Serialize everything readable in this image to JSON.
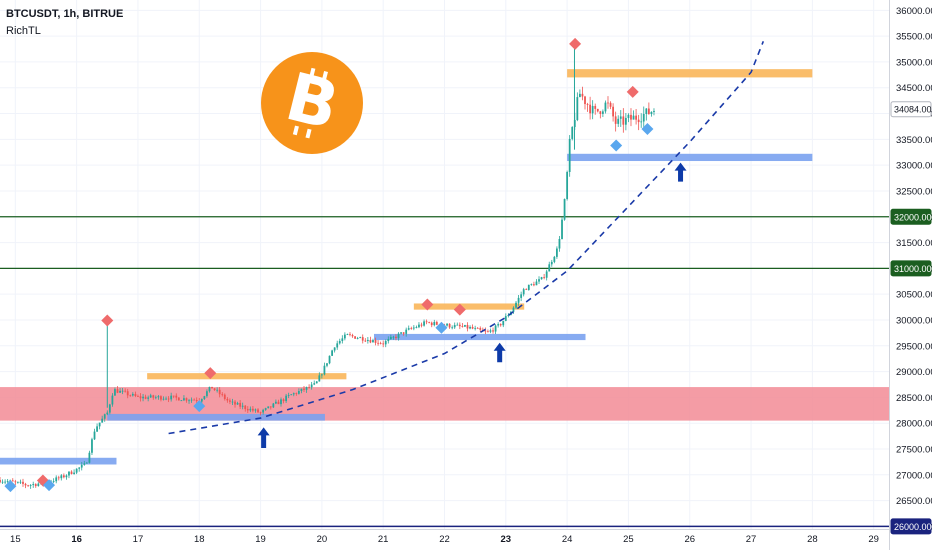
{
  "header": {
    "title": "BTCUSDT, 1h, BITRUE",
    "subtitle": "RichTL"
  },
  "colors": {
    "up": "#26a69a",
    "down": "#ef5350",
    "demand_zone": "#7aa2f0",
    "supply_zone": "#f9b65a",
    "major_zone": "#f28b95",
    "level_line": "#1b5e20",
    "bottom_line": "#1a237e",
    "curve": "#1a3aa8",
    "arrow": "#0d3aa8",
    "diamond_red": "#ef6b6b",
    "diamond_blue": "#5aa7ee",
    "btc_orange": "#f7931a"
  },
  "chart_data": {
    "type": "candlestick",
    "symbol": "BTCUSDT",
    "timeframe": "1h",
    "exchange": "BITRUE",
    "ylim": [
      25950,
      36200
    ],
    "xlim": [
      14.75,
      29.25
    ],
    "y_ticks": [
      "26000.00",
      "26500.00",
      "27000.00",
      "27500.00",
      "28000.00",
      "28500.00",
      "29000.00",
      "29500.00",
      "30000.00",
      "30500.00",
      "31000.00",
      "31500.00",
      "32000.00",
      "32500.00",
      "33000.00",
      "33500.00",
      "34000.00",
      "34500.00",
      "35000.00",
      "35500.00",
      "36000.00"
    ],
    "x_ticks": [
      {
        "label": "15",
        "x": 15,
        "bold": false
      },
      {
        "label": "16",
        "x": 16,
        "bold": true
      },
      {
        "label": "17",
        "x": 17,
        "bold": false
      },
      {
        "label": "18",
        "x": 18,
        "bold": false
      },
      {
        "label": "19",
        "x": 19,
        "bold": false
      },
      {
        "label": "20",
        "x": 20,
        "bold": false
      },
      {
        "label": "21",
        "x": 21,
        "bold": false
      },
      {
        "label": "22",
        "x": 22,
        "bold": false
      },
      {
        "label": "23",
        "x": 23,
        "bold": true
      },
      {
        "label": "24",
        "x": 24,
        "bold": false
      },
      {
        "label": "25",
        "x": 25,
        "bold": false
      },
      {
        "label": "26",
        "x": 26,
        "bold": false
      },
      {
        "label": "27",
        "x": 27,
        "bold": false
      },
      {
        "label": "28",
        "x": 28,
        "bold": false
      },
      {
        "label": "29",
        "x": 29,
        "bold": false
      }
    ],
    "price_labels": [
      {
        "value": 34084,
        "text": "34084.00",
        "style": "current"
      },
      {
        "value": 32000,
        "text": "32000.00",
        "style": "level"
      },
      {
        "value": 31000,
        "text": "31000.00",
        "style": "level"
      },
      {
        "value": 26000,
        "text": "26000.00",
        "style": "bottom"
      }
    ],
    "path_points": [
      [
        14.75,
        26900
      ],
      [
        15.2,
        26800
      ],
      [
        15.5,
        26850
      ],
      [
        15.75,
        26950
      ],
      [
        16.15,
        27200
      ],
      [
        16.3,
        27900
      ],
      [
        16.5,
        28200
      ],
      [
        16.6,
        28650
      ],
      [
        17.0,
        28500
      ],
      [
        17.5,
        28500
      ],
      [
        18.0,
        28450
      ],
      [
        18.2,
        28700
      ],
      [
        18.5,
        28400
      ],
      [
        19.0,
        28200
      ],
      [
        19.5,
        28550
      ],
      [
        19.9,
        28750
      ],
      [
        20.05,
        29100
      ],
      [
        20.2,
        29500
      ],
      [
        20.4,
        29700
      ],
      [
        20.65,
        29650
      ],
      [
        21.0,
        29550
      ],
      [
        21.4,
        29800
      ],
      [
        21.7,
        29950
      ],
      [
        22.0,
        29900
      ],
      [
        22.4,
        29850
      ],
      [
        22.7,
        29750
      ],
      [
        22.9,
        29900
      ],
      [
        23.1,
        30200
      ],
      [
        23.3,
        30600
      ],
      [
        23.6,
        30800
      ],
      [
        23.85,
        31400
      ],
      [
        23.95,
        32200
      ],
      [
        24.05,
        33500
      ],
      [
        24.2,
        34400
      ],
      [
        24.45,
        34000
      ],
      [
        24.65,
        34200
      ],
      [
        24.8,
        33800
      ],
      [
        25.05,
        33900
      ],
      [
        25.3,
        34000
      ],
      [
        25.42,
        34084
      ]
    ],
    "spikes": [
      {
        "x": 16.5,
        "high": 30000,
        "low": 28300
      },
      {
        "x": 24.12,
        "high": 35300,
        "low": 33300
      }
    ],
    "zones": [
      {
        "kind": "major",
        "y1": 28050,
        "y2": 28700,
        "x1": 14.75,
        "x2": 29.25
      },
      {
        "kind": "demand",
        "y1": 27200,
        "y2": 27330,
        "x1": 14.75,
        "x2": 16.65
      },
      {
        "kind": "demand",
        "y1": 28050,
        "y2": 28180,
        "x1": 16.5,
        "x2": 20.05
      },
      {
        "kind": "supply",
        "y1": 28850,
        "y2": 28970,
        "x1": 17.15,
        "x2": 20.4
      },
      {
        "kind": "demand",
        "y1": 29610,
        "y2": 29730,
        "x1": 20.85,
        "x2": 24.3
      },
      {
        "kind": "supply",
        "y1": 30200,
        "y2": 30320,
        "x1": 21.5,
        "x2": 23.3
      },
      {
        "kind": "demand",
        "y1": 33080,
        "y2": 33220,
        "x1": 24.0,
        "x2": 28.0
      },
      {
        "kind": "supply",
        "y1": 34700,
        "y2": 34860,
        "x1": 24.0,
        "x2": 28.0
      }
    ],
    "levels": [
      {
        "kind": "level",
        "value": 32000
      },
      {
        "kind": "level",
        "value": 31000
      },
      {
        "kind": "bottom",
        "value": 26000
      }
    ],
    "curve": [
      [
        17.5,
        27800
      ],
      [
        19.0,
        28100
      ],
      [
        20.5,
        28650
      ],
      [
        22.0,
        29350
      ],
      [
        23.0,
        30050
      ],
      [
        24.0,
        30950
      ],
      [
        25.0,
        32200
      ],
      [
        26.0,
        33450
      ],
      [
        27.0,
        34800
      ],
      [
        27.2,
        35400
      ]
    ],
    "markers": [
      {
        "shape": "diamond",
        "color": "blue",
        "x": 14.92,
        "y": 26780
      },
      {
        "shape": "diamond",
        "color": "red",
        "x": 15.45,
        "y": 26890
      },
      {
        "shape": "diamond",
        "color": "blue",
        "x": 15.55,
        "y": 26800
      },
      {
        "shape": "diamond",
        "color": "red",
        "x": 16.5,
        "y": 29990
      },
      {
        "shape": "diamond",
        "color": "blue",
        "x": 18.0,
        "y": 28330
      },
      {
        "shape": "diamond",
        "color": "red",
        "x": 18.18,
        "y": 28970
      },
      {
        "shape": "diamond",
        "color": "blue",
        "x": 21.95,
        "y": 29850
      },
      {
        "shape": "diamond",
        "color": "red",
        "x": 21.72,
        "y": 30300
      },
      {
        "shape": "diamond",
        "color": "red",
        "x": 22.25,
        "y": 30200
      },
      {
        "shape": "diamond",
        "color": "blue",
        "x": 24.8,
        "y": 33380
      },
      {
        "shape": "diamond",
        "color": "red",
        "x": 25.07,
        "y": 34420
      },
      {
        "shape": "diamond",
        "color": "blue",
        "x": 25.31,
        "y": 33700
      },
      {
        "shape": "diamond",
        "color": "red",
        "x": 24.13,
        "y": 35350
      }
    ],
    "arrows": [
      {
        "x": 19.05,
        "y_tip": 27920,
        "y_tail": 27520
      },
      {
        "x": 22.9,
        "y_tip": 29560,
        "y_tail": 29180
      },
      {
        "x": 25.85,
        "y_tip": 33050,
        "y_tail": 32680
      }
    ],
    "logo": {
      "symbol": "bitcoin",
      "cx": 312,
      "cy": 103,
      "r": 51
    }
  }
}
